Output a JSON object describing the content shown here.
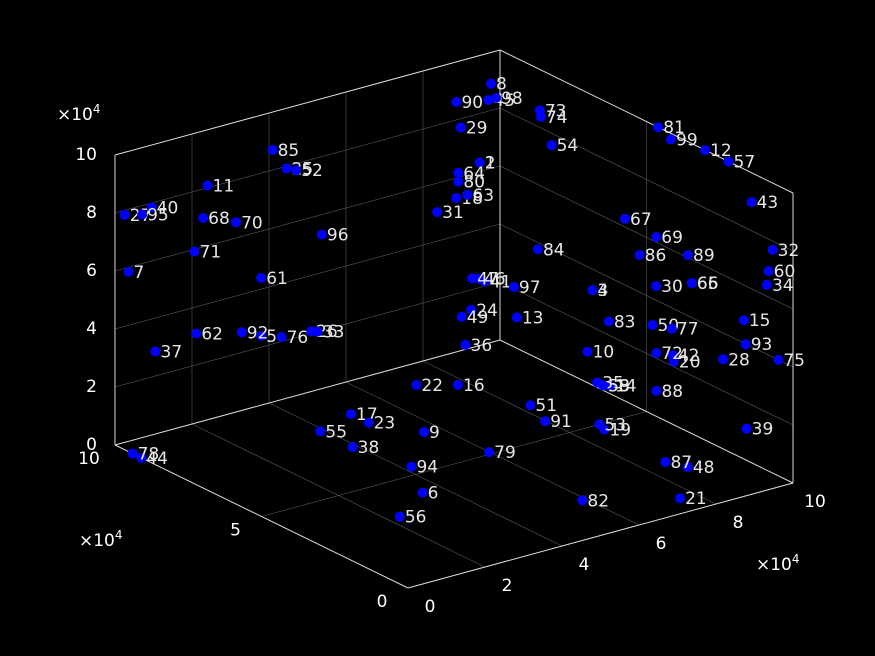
{
  "chart_data": {
    "type": "scatter3d",
    "marker_color": "#0000ff",
    "background": "#000000",
    "text_color": "#ffffff",
    "grid": true,
    "xlim": [
      0,
      100000
    ],
    "ylim": [
      0,
      100000
    ],
    "zlim": [
      0,
      100000
    ],
    "x_ticks": [
      "0",
      "2",
      "4",
      "6",
      "8",
      "10"
    ],
    "y_ticks": [
      "0",
      "5",
      "10"
    ],
    "z_ticks": [
      "0",
      "2",
      "4",
      "6",
      "8",
      "10"
    ],
    "x_exponent": "×10",
    "y_exponent": "×10",
    "z_exponent": "×10",
    "exponent_power": "4",
    "points": [
      {
        "label": "1",
        "x": 78000,
        "y": 78000,
        "z": 80000
      },
      {
        "label": "2",
        "x": 78000,
        "y": 78000,
        "z": 80000
      },
      {
        "label": "3",
        "x": 73000,
        "y": 33000,
        "z": 60000
      },
      {
        "label": "4",
        "x": 73000,
        "y": 33000,
        "z": 60000
      },
      {
        "label": "5",
        "x": 22000,
        "y": 79000,
        "z": 40000
      },
      {
        "label": "6",
        "x": 35000,
        "y": 41000,
        "z": 0
      },
      {
        "label": "7",
        "x": 2000,
        "y": 98000,
        "z": 60000
      },
      {
        "label": "8",
        "x": 87000,
        "y": 86000,
        "z": 100000
      },
      {
        "label": "9",
        "x": 46000,
        "y": 55000,
        "z": 10000
      },
      {
        "label": "10",
        "x": 71000,
        "y": 32000,
        "z": 40000
      },
      {
        "label": "11",
        "x": 5000,
        "y": 75000,
        "z": 100000
      },
      {
        "label": "12",
        "x": 100000,
        "y": 30000,
        "z": 100000
      },
      {
        "label": "13",
        "x": 61000,
        "y": 43000,
        "z": 50000
      },
      {
        "label": "14",
        "x": 73000,
        "y": 27000,
        "z": 30000
      },
      {
        "label": "15",
        "x": 88000,
        "y": 1000,
        "z": 60000
      },
      {
        "label": "16",
        "x": 48000,
        "y": 46000,
        "z": 30000
      },
      {
        "label": "17",
        "x": 40000,
        "y": 72000,
        "z": 10000
      },
      {
        "label": "18",
        "x": 62000,
        "y": 65000,
        "z": 80000
      },
      {
        "label": "19",
        "x": 67000,
        "y": 21000,
        "z": 20000
      },
      {
        "label": "20",
        "x": 82000,
        "y": 17000,
        "z": 40000
      },
      {
        "label": "21",
        "x": 76000,
        "y": 7000,
        "z": 0
      },
      {
        "label": "22",
        "x": 41000,
        "y": 51000,
        "z": 30000
      },
      {
        "label": "23",
        "x": 40000,
        "y": 66000,
        "z": 10000
      },
      {
        "label": "24",
        "x": 56000,
        "y": 52000,
        "z": 50000
      },
      {
        "label": "25",
        "x": 24000,
        "y": 73000,
        "z": 100000
      },
      {
        "label": "26",
        "x": 22000,
        "y": 62000,
        "z": 50000
      },
      {
        "label": "27",
        "x": 1000,
        "y": 98000,
        "z": 80000
      },
      {
        "label": "28",
        "x": 91000,
        "y": 12000,
        "z": 40000
      },
      {
        "label": "29",
        "x": 67000,
        "y": 70000,
        "z": 100000
      },
      {
        "label": "30",
        "x": 85000,
        "y": 27000,
        "z": 60000
      },
      {
        "label": "31",
        "x": 54000,
        "y": 61000,
        "z": 80000
      },
      {
        "label": "32",
        "x": 97000,
        "y": 3000,
        "z": 80000
      },
      {
        "label": "33",
        "x": 23000,
        "y": 61000,
        "z": 50000
      },
      {
        "label": "34",
        "x": 94000,
        "y": 1000,
        "z": 70000
      },
      {
        "label": "35",
        "x": 72000,
        "y": 30000,
        "z": 30000
      },
      {
        "label": "36",
        "x": 53000,
        "y": 50000,
        "z": 40000
      },
      {
        "label": "37",
        "x": 9000,
        "y": 98000,
        "z": 30000
      },
      {
        "label": "38",
        "x": 29000,
        "y": 57000,
        "z": 10000
      },
      {
        "label": "39",
        "x": 91000,
        "y": 4000,
        "z": 20000
      },
      {
        "label": "40",
        "x": 8000,
        "y": 98000,
        "z": 80000
      },
      {
        "label": "41",
        "x": 58000,
        "y": 50000,
        "z": 60000
      },
      {
        "label": "42",
        "x": 84000,
        "y": 20000,
        "z": 40000
      },
      {
        "label": "43",
        "x": 90000,
        "y": 1000,
        "z": 100000
      },
      {
        "label": "44",
        "x": 0,
        "y": 91000,
        "z": 0
      },
      {
        "label": "45",
        "x": 81000,
        "y": 79000,
        "z": 100000
      },
      {
        "label": "46",
        "x": 58000,
        "y": 52000,
        "z": 60000
      },
      {
        "label": "47",
        "x": 57000,
        "y": 53000,
        "z": 60000
      },
      {
        "label": "48",
        "x": 78000,
        "y": 7000,
        "z": 10000
      },
      {
        "label": "49",
        "x": 52000,
        "y": 50000,
        "z": 50000
      },
      {
        "label": "50",
        "x": 81000,
        "y": 23000,
        "z": 50000
      },
      {
        "label": "51",
        "x": 63000,
        "y": 41000,
        "z": 20000
      },
      {
        "label": "52",
        "x": 25000,
        "y": 71000,
        "z": 100000
      },
      {
        "label": "53",
        "x": 68000,
        "y": 24000,
        "z": 20000
      },
      {
        "label": "54",
        "x": 86000,
        "y": 64000,
        "z": 90000
      },
      {
        "label": "55",
        "x": 29000,
        "y": 68000,
        "z": 10000
      },
      {
        "label": "56",
        "x": 23000,
        "y": 33000,
        "z": 0
      },
      {
        "label": "57",
        "x": 100000,
        "y": 22000,
        "z": 100000
      },
      {
        "label": "58",
        "x": 72000,
        "y": 28000,
        "z": 30000
      },
      {
        "label": "59",
        "x": 72000,
        "y": 28000,
        "z": 30000
      },
      {
        "label": "60",
        "x": 99000,
        "y": 7000,
        "z": 70000
      },
      {
        "label": "61",
        "x": 22000,
        "y": 79000,
        "z": 60000
      },
      {
        "label": "62",
        "x": 12000,
        "y": 88000,
        "z": 40000
      },
      {
        "label": "63",
        "x": 55000,
        "y": 52000,
        "z": 90000
      },
      {
        "label": "64",
        "x": 61000,
        "y": 63000,
        "z": 90000
      },
      {
        "label": "65",
        "x": 92000,
        "y": 24000,
        "z": 60000
      },
      {
        "label": "66",
        "x": 92000,
        "y": 24000,
        "z": 60000
      },
      {
        "label": "67",
        "x": 83000,
        "y": 35000,
        "z": 80000
      },
      {
        "label": "68",
        "x": 13000,
        "y": 87000,
        "z": 80000
      },
      {
        "label": "69",
        "x": 82000,
        "y": 23000,
        "z": 80000
      },
      {
        "label": "70",
        "x": 17000,
        "y": 81000,
        "z": 80000
      },
      {
        "label": "71",
        "x": 10000,
        "y": 86000,
        "z": 70000
      },
      {
        "label": "72",
        "x": 82000,
        "y": 23000,
        "z": 40000
      },
      {
        "label": "73",
        "x": 86000,
        "y": 68000,
        "z": 100000
      },
      {
        "label": "74",
        "x": 84000,
        "y": 65000,
        "z": 100000
      },
      {
        "label": "75",
        "x": 100000,
        "y": 5000,
        "z": 40000
      },
      {
        "label": "76",
        "x": 25000,
        "y": 76000,
        "z": 40000
      },
      {
        "label": "77",
        "x": 83000,
        "y": 19000,
        "z": 50000
      },
      {
        "label": "78",
        "x": 0,
        "y": 94000,
        "z": 0
      },
      {
        "label": "79",
        "x": 50000,
        "y": 38000,
        "z": 10000
      },
      {
        "label": "80",
        "x": 58000,
        "y": 59000,
        "z": 90000
      },
      {
        "label": "81",
        "x": 100000,
        "y": 46000,
        "z": 100000
      },
      {
        "label": "82",
        "x": 59000,
        "y": 18000,
        "z": 0
      },
      {
        "label": "83",
        "x": 75000,
        "y": 30000,
        "z": 50000
      },
      {
        "label": "84",
        "x": 68000,
        "y": 45000,
        "z": 70000
      },
      {
        "label": "85",
        "x": 28000,
        "y": 83000,
        "z": 100000
      },
      {
        "label": "86",
        "x": 83000,
        "y": 30000,
        "z": 70000
      },
      {
        "label": "87",
        "x": 76000,
        "y": 12000,
        "z": 10000
      },
      {
        "label": "88",
        "x": 79000,
        "y": 19000,
        "z": 30000
      },
      {
        "label": "89",
        "x": 91000,
        "y": 24000,
        "z": 70000
      },
      {
        "label": "90",
        "x": 75000,
        "y": 82000,
        "z": 100000
      },
      {
        "label": "91",
        "x": 60000,
        "y": 32000,
        "z": 20000
      },
      {
        "label": "92",
        "x": 20000,
        "y": 83000,
        "z": 40000
      },
      {
        "label": "93",
        "x": 90000,
        "y": 3000,
        "z": 50000
      },
      {
        "label": "94",
        "x": 42000,
        "y": 54000,
        "z": 0
      },
      {
        "label": "95",
        "x": 4000,
        "y": 96000,
        "z": 80000
      },
      {
        "label": "96",
        "x": 37000,
        "y": 78000,
        "z": 70000
      },
      {
        "label": "97",
        "x": 61000,
        "y": 44000,
        "z": 60000
      },
      {
        "label": "98",
        "x": 83000,
        "y": 79000,
        "z": 100000
      },
      {
        "label": "99",
        "x": 98000,
        "y": 39000,
        "z": 100000
      }
    ]
  }
}
